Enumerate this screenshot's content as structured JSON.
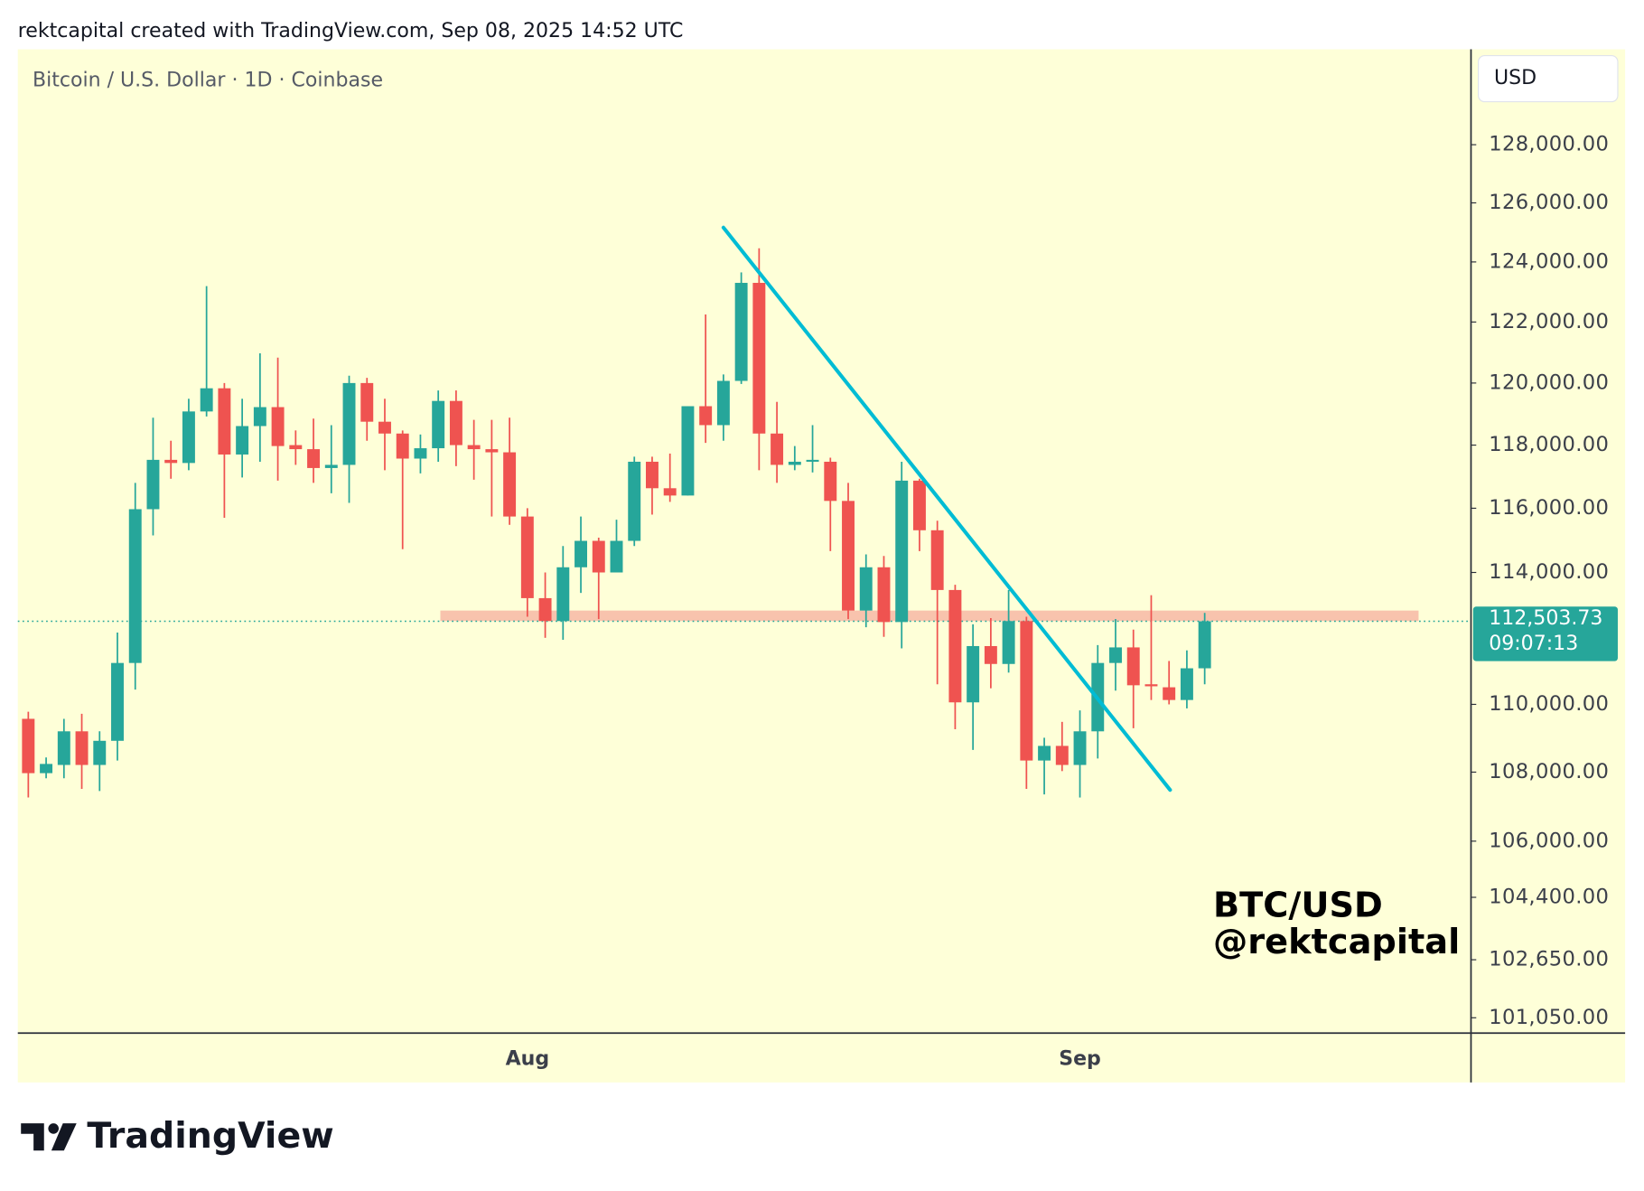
{
  "header": "rektcapital created with TradingView.com, Sep 08, 2025 14:52 UTC",
  "logo": "TradingView",
  "currency_button": "USD",
  "chart_data": {
    "type": "candlestick",
    "title": "Bitcoin / U.S. Dollar · 1D · Coinbase",
    "watermark": [
      "BTC/USD",
      "@rektcapital"
    ],
    "categories": [
      null,
      null,
      null,
      null,
      null,
      null,
      null,
      null,
      null,
      null,
      null,
      null,
      null,
      null,
      null,
      null,
      null,
      null,
      null,
      null,
      null,
      null,
      null,
      null,
      null,
      null,
      null,
      null,
      "Aug",
      null,
      null,
      null,
      null,
      null,
      null,
      null,
      null,
      null,
      null,
      null,
      null,
      null,
      null,
      null,
      null,
      null,
      null,
      null,
      null,
      null,
      null,
      null,
      null,
      null,
      null,
      null,
      null,
      null,
      null,
      "Sep",
      null,
      null,
      null,
      null,
      null,
      null,
      null
    ],
    "open": [
      109570,
      107970,
      108210,
      109200,
      108210,
      108920,
      111240,
      115970,
      117530,
      117430,
      119080,
      119830,
      117700,
      118610,
      119220,
      118000,
      117870,
      117270,
      117370,
      120000,
      118750,
      118370,
      117570,
      117900,
      119420,
      118000,
      117870,
      117770,
      115740,
      113210,
      112510,
      114160,
      114980,
      114000,
      114980,
      117470,
      116630,
      116400,
      119250,
      118640,
      120070,
      123300,
      118370,
      117370,
      117470,
      117470,
      116230,
      112830,
      114160,
      112480,
      116870,
      115310,
      113460,
      110060,
      111750,
      111210,
      112510,
      108340,
      108770,
      108210,
      109200,
      111240,
      111710,
      110600,
      110510,
      110130,
      111080
    ],
    "high": [
      109780,
      108430,
      109570,
      109720,
      109200,
      112160,
      116800,
      118880,
      118140,
      119490,
      123190,
      120000,
      119490,
      120970,
      120830,
      118470,
      118850,
      118640,
      120240,
      120170,
      119490,
      118470,
      118340,
      119760,
      119760,
      118810,
      118810,
      118880,
      116000,
      114000,
      114820,
      115740,
      115080,
      115640,
      117630,
      117630,
      117730,
      119250,
      122250,
      120280,
      123650,
      124460,
      119390,
      117970,
      118640,
      117600,
      116800,
      114560,
      114510,
      117470,
      116930,
      115610,
      113620,
      112410,
      112600,
      113460,
      112640,
      109010,
      109480,
      109820,
      111780,
      112570,
      112250,
      113300,
      111300,
      111620,
      112760
    ],
    "low": [
      107260,
      107820,
      107820,
      107510,
      107450,
      108340,
      110440,
      115150,
      116930,
      117200,
      118920,
      115700,
      116970,
      117470,
      116870,
      117370,
      116800,
      116470,
      116170,
      118140,
      117200,
      114720,
      117100,
      117470,
      117330,
      116900,
      115740,
      115480,
      112640,
      112000,
      111940,
      113370,
      112570,
      114000,
      114820,
      115800,
      116200,
      116400,
      118070,
      118140,
      119970,
      117200,
      116800,
      117200,
      117130,
      114660,
      112570,
      112320,
      112030,
      111680,
      114660,
      110600,
      109260,
      108650,
      110480,
      110950,
      107510,
      107350,
      108030,
      107260,
      108400,
      110410,
      109290,
      110130,
      110000,
      109880,
      110600
    ],
    "close": [
      107970,
      108240,
      109200,
      108210,
      108920,
      111240,
      115970,
      117530,
      117430,
      119080,
      119830,
      117700,
      118610,
      119220,
      117970,
      117870,
      117270,
      117370,
      120000,
      118750,
      118370,
      117570,
      117900,
      119420,
      118000,
      117870,
      117770,
      115740,
      113210,
      112510,
      114160,
      114980,
      114000,
      114980,
      117470,
      116630,
      116400,
      119250,
      118640,
      120070,
      123300,
      118370,
      117370,
      117470,
      117530,
      116230,
      112830,
      114160,
      112480,
      116870,
      115310,
      113460,
      110060,
      111750,
      111210,
      112510,
      108340,
      108770,
      108210,
      109200,
      111240,
      111710,
      110570,
      110540,
      110130,
      111080,
      112503.73
    ],
    "up_color": "#26a69a",
    "down_color": "#ef5350",
    "background": "#feffd8",
    "log_scale": true,
    "ylim": [
      100630,
      131350
    ],
    "yticks": [
      {
        "value": 128000,
        "label": "128,000.00"
      },
      {
        "value": 126000,
        "label": "126,000.00"
      },
      {
        "value": 124000,
        "label": "124,000.00"
      },
      {
        "value": 122000,
        "label": "122,000.00"
      },
      {
        "value": 120000,
        "label": "120,000.00"
      },
      {
        "value": 118000,
        "label": "118,000.00"
      },
      {
        "value": 116000,
        "label": "116,000.00"
      },
      {
        "value": 114000,
        "label": "114,000.00"
      },
      {
        "value": 110000,
        "label": "110,000.00"
      },
      {
        "value": 108000,
        "label": "108,000.00"
      },
      {
        "value": 106000,
        "label": "106,000.00"
      },
      {
        "value": 104400,
        "label": "104,400.00"
      },
      {
        "value": 102650,
        "label": "102,650.00"
      },
      {
        "value": 101050,
        "label": "101,050.00"
      }
    ],
    "last_price": {
      "value": 112503.73,
      "label": "112,503.73"
    },
    "countdown": "09:07:13",
    "zone": {
      "low": 112510,
      "high": 112830,
      "color": "#f7b9a6"
    },
    "trendline": {
      "start": 125160,
      "end": 107480,
      "color": "#00bcd4"
    }
  }
}
